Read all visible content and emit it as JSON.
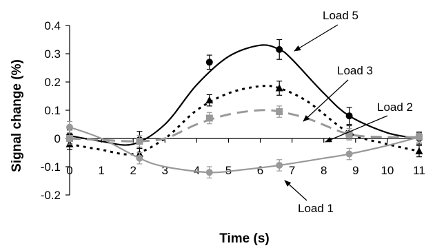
{
  "chart_data": {
    "type": "line",
    "title": "",
    "xlabel": "Time (s)",
    "ylabel": "Signal change (%)",
    "xlim": [
      0,
      11
    ],
    "ylim": [
      -0.2,
      0.4
    ],
    "x_ticks": [
      "0",
      "1",
      "2",
      "3",
      "4",
      "5",
      "6",
      "7",
      "8",
      "9",
      "10",
      "11"
    ],
    "y_ticks": [
      "0.4",
      "0.3",
      "0.2",
      "0.1",
      "0",
      "-0.1",
      "-0.2"
    ],
    "grid": false,
    "legend": "none (series labelled with arrows)",
    "series": [
      {
        "name": "Load 5",
        "color": "#000000",
        "line_style": "solid",
        "marker": "circle",
        "points": [
          {
            "x": 0,
            "y": 0.01,
            "err": 0.02
          },
          {
            "x": 2.2,
            "y": -0.005,
            "err": 0.03
          },
          {
            "x": 4.4,
            "y": 0.27,
            "err": 0.025
          },
          {
            "x": 6.6,
            "y": 0.315,
            "err": 0.035
          },
          {
            "x": 8.8,
            "y": 0.08,
            "err": 0.03
          },
          {
            "x": 11,
            "y": 0.0,
            "err": 0.02
          }
        ],
        "curve": [
          [
            0,
            0.01
          ],
          [
            1,
            -0.01
          ],
          [
            2,
            -0.02
          ],
          [
            3,
            0.05
          ],
          [
            4,
            0.19
          ],
          [
            5,
            0.29
          ],
          [
            6,
            0.33
          ],
          [
            6.6,
            0.315
          ],
          [
            7,
            0.28
          ],
          [
            8,
            0.16
          ],
          [
            8.8,
            0.08
          ],
          [
            10,
            0.02
          ],
          [
            11,
            0.0
          ]
        ]
      },
      {
        "name": "Load 3",
        "color": "#000000",
        "line_style": "dotted",
        "marker": "triangle",
        "points": [
          {
            "x": 0,
            "y": -0.02,
            "err": 0.02
          },
          {
            "x": 2.2,
            "y": -0.055,
            "err": 0.02
          },
          {
            "x": 4.4,
            "y": 0.135,
            "err": 0.02
          },
          {
            "x": 6.6,
            "y": 0.178,
            "err": 0.025
          },
          {
            "x": 8.8,
            "y": 0.02,
            "err": 0.025
          },
          {
            "x": 11,
            "y": -0.045,
            "err": 0.02
          }
        ],
        "curve": [
          [
            0,
            -0.02
          ],
          [
            1,
            -0.04
          ],
          [
            2,
            -0.055
          ],
          [
            3,
            0.0
          ],
          [
            4,
            0.1
          ],
          [
            5,
            0.16
          ],
          [
            6,
            0.185
          ],
          [
            6.6,
            0.178
          ],
          [
            7.5,
            0.13
          ],
          [
            8.8,
            0.02
          ],
          [
            10,
            -0.02
          ],
          [
            11,
            -0.045
          ]
        ]
      },
      {
        "name": "Load 2",
        "color": "#999999",
        "line_style": "dashed",
        "marker": "square",
        "points": [
          {
            "x": 0,
            "y": 0.0,
            "err": 0.02
          },
          {
            "x": 2.2,
            "y": -0.01,
            "err": 0.02
          },
          {
            "x": 4.4,
            "y": 0.072,
            "err": 0.02
          },
          {
            "x": 6.6,
            "y": 0.095,
            "err": 0.02
          },
          {
            "x": 8.8,
            "y": 0.015,
            "err": 0.02
          },
          {
            "x": 11,
            "y": 0.005,
            "err": 0.02
          }
        ],
        "curve": [
          [
            0,
            0.0
          ],
          [
            1,
            -0.005
          ],
          [
            2,
            -0.01
          ],
          [
            3,
            0.0
          ],
          [
            4,
            0.05
          ],
          [
            5,
            0.085
          ],
          [
            6,
            0.1
          ],
          [
            6.6,
            0.095
          ],
          [
            7.5,
            0.07
          ],
          [
            8.8,
            0.015
          ],
          [
            10,
            0.005
          ],
          [
            11,
            0.005
          ]
        ]
      },
      {
        "name": "Load 1",
        "color": "#999999",
        "line_style": "solid",
        "marker": "circle",
        "points": [
          {
            "x": 0,
            "y": 0.04,
            "err": 0.02
          },
          {
            "x": 2.2,
            "y": -0.07,
            "err": 0.02
          },
          {
            "x": 4.4,
            "y": -0.12,
            "err": 0.02
          },
          {
            "x": 6.6,
            "y": -0.095,
            "err": 0.02
          },
          {
            "x": 8.8,
            "y": -0.055,
            "err": 0.02
          },
          {
            "x": 11,
            "y": 0.005,
            "err": 0.02
          }
        ],
        "curve": [
          [
            0,
            0.04
          ],
          [
            1,
            0.0
          ],
          [
            2.2,
            -0.07
          ],
          [
            3,
            -0.1
          ],
          [
            4.4,
            -0.12
          ],
          [
            5.5,
            -0.11
          ],
          [
            6.6,
            -0.095
          ],
          [
            8,
            -0.07
          ],
          [
            8.8,
            -0.055
          ],
          [
            10,
            -0.025
          ],
          [
            11,
            0.005
          ]
        ]
      }
    ],
    "annotations": [
      {
        "text": "Load 5",
        "series": "Load 5"
      },
      {
        "text": "Load 3",
        "series": "Load 3"
      },
      {
        "text": "Load 2",
        "series": "Load 2"
      },
      {
        "text": "Load 1",
        "series": "Load 1"
      }
    ]
  }
}
